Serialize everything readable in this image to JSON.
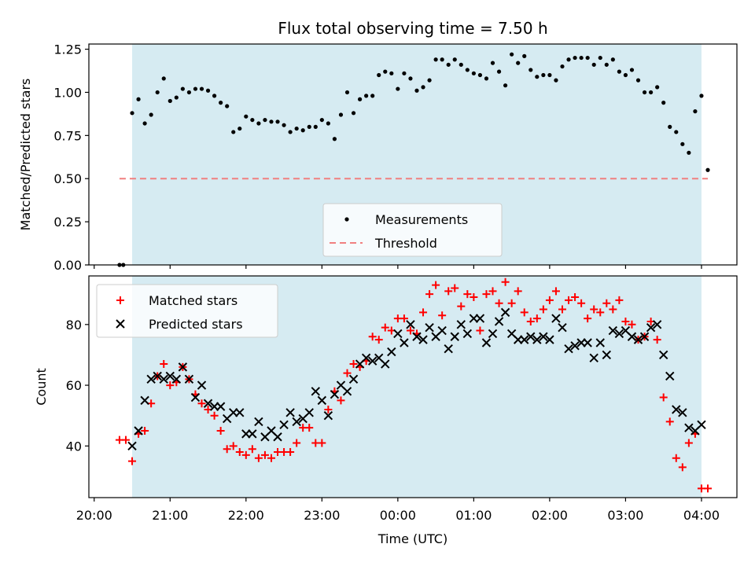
{
  "title": "Flux total observing time = 7.50 h",
  "chart_data": [
    {
      "type": "scatter",
      "panel": "top",
      "ylabel": "Matched/Predicted stars",
      "xlabel": "",
      "xlim": [
        "20:00",
        "04:30"
      ],
      "ylim": [
        0,
        1.28
      ],
      "yticks": [
        "0.00",
        "0.25",
        "0.50",
        "0.75",
        "1.00",
        "1.25"
      ],
      "shaded_interval": [
        "20:30",
        "04:00"
      ],
      "threshold": 0.5,
      "threshold_span": [
        "20:20",
        "04:05"
      ],
      "legend_position": "lower center",
      "legend": [
        {
          "label": "Measurements",
          "marker": "dot",
          "color": "#000000"
        },
        {
          "label": "Threshold",
          "marker": "dashed-line",
          "color": "#f08080"
        }
      ],
      "series": [
        {
          "name": "Measurements",
          "x": [
            "20:20",
            "20:23",
            "20:30",
            "20:35",
            "20:40",
            "20:45",
            "20:50",
            "20:55",
            "21:00",
            "21:05",
            "21:10",
            "21:15",
            "21:20",
            "21:25",
            "21:30",
            "21:35",
            "21:40",
            "21:45",
            "21:50",
            "21:55",
            "22:00",
            "22:05",
            "22:10",
            "22:15",
            "22:20",
            "22:25",
            "22:30",
            "22:35",
            "22:40",
            "22:45",
            "22:50",
            "22:55",
            "23:00",
            "23:05",
            "23:10",
            "23:15",
            "23:20",
            "23:25",
            "23:30",
            "23:35",
            "23:40",
            "23:45",
            "23:50",
            "23:55",
            "00:00",
            "00:05",
            "00:10",
            "00:15",
            "00:20",
            "00:25",
            "00:30",
            "00:35",
            "00:40",
            "00:45",
            "00:50",
            "00:55",
            "01:00",
            "01:05",
            "01:10",
            "01:15",
            "01:20",
            "01:25",
            "01:30",
            "01:35",
            "01:40",
            "01:45",
            "01:50",
            "01:55",
            "02:00",
            "02:05",
            "02:10",
            "02:15",
            "02:20",
            "02:25",
            "02:30",
            "02:35",
            "02:40",
            "02:45",
            "02:50",
            "02:55",
            "03:00",
            "03:05",
            "03:10",
            "03:15",
            "03:20",
            "03:25",
            "03:30",
            "03:35",
            "03:40",
            "03:45",
            "03:50",
            "03:55",
            "04:00",
            "04:05"
          ],
          "y": [
            0.0,
            0.0,
            0.88,
            0.96,
            0.82,
            0.87,
            1.0,
            1.08,
            0.95,
            0.97,
            1.02,
            1.0,
            1.02,
            1.02,
            1.01,
            0.98,
            0.94,
            0.92,
            0.77,
            0.79,
            0.86,
            0.84,
            0.82,
            0.84,
            0.83,
            0.83,
            0.81,
            0.77,
            0.79,
            0.78,
            0.8,
            0.8,
            0.84,
            0.82,
            0.73,
            0.87,
            1.0,
            0.88,
            0.96,
            0.98,
            0.98,
            1.1,
            1.12,
            1.11,
            1.02,
            1.11,
            1.08,
            1.01,
            1.03,
            1.07,
            1.19,
            1.19,
            1.16,
            1.19,
            1.16,
            1.13,
            1.11,
            1.1,
            1.08,
            1.17,
            1.12,
            1.04,
            1.22,
            1.17,
            1.21,
            1.13,
            1.09,
            1.1,
            1.1,
            1.07,
            1.15,
            1.19,
            1.2,
            1.2,
            1.2,
            1.16,
            1.2,
            1.16,
            1.19,
            1.12,
            1.1,
            1.13,
            1.07,
            1.0,
            1.0,
            1.03,
            0.94,
            0.8,
            0.77,
            0.7,
            0.65,
            0.89,
            0.98,
            0.55
          ]
        }
      ]
    },
    {
      "type": "scatter",
      "panel": "bottom",
      "ylabel": "Count",
      "xlabel": "Time (UTC)",
      "xlim": [
        "20:00",
        "04:30"
      ],
      "ylim": [
        23,
        96
      ],
      "yticks": [
        "40",
        "60",
        "80"
      ],
      "xticks": [
        "20:00",
        "21:00",
        "22:00",
        "23:00",
        "00:00",
        "01:00",
        "02:00",
        "03:00",
        "04:00"
      ],
      "shaded_interval": [
        "20:30",
        "04:00"
      ],
      "legend_position": "upper left",
      "legend": [
        {
          "label": "Matched stars",
          "marker": "plus",
          "color": "#ff0000"
        },
        {
          "label": "Predicted stars",
          "marker": "cross",
          "color": "#000000"
        }
      ],
      "series": [
        {
          "name": "Matched stars",
          "x": [
            "20:20",
            "20:25",
            "20:30",
            "20:35",
            "20:40",
            "20:45",
            "20:50",
            "20:55",
            "21:00",
            "21:05",
            "21:10",
            "21:15",
            "21:20",
            "21:25",
            "21:30",
            "21:35",
            "21:40",
            "21:45",
            "21:50",
            "21:55",
            "22:00",
            "22:05",
            "22:10",
            "22:15",
            "22:20",
            "22:25",
            "22:30",
            "22:35",
            "22:40",
            "22:45",
            "22:50",
            "22:55",
            "23:00",
            "23:05",
            "23:10",
            "23:15",
            "23:20",
            "23:25",
            "23:30",
            "23:35",
            "23:40",
            "23:45",
            "23:50",
            "23:55",
            "00:00",
            "00:05",
            "00:10",
            "00:15",
            "00:20",
            "00:25",
            "00:30",
            "00:35",
            "00:40",
            "00:45",
            "00:50",
            "00:55",
            "01:00",
            "01:05",
            "01:10",
            "01:15",
            "01:20",
            "01:25",
            "01:30",
            "01:35",
            "01:40",
            "01:45",
            "01:50",
            "01:55",
            "02:00",
            "02:05",
            "02:10",
            "02:15",
            "02:20",
            "02:25",
            "02:30",
            "02:35",
            "02:40",
            "02:45",
            "02:50",
            "02:55",
            "03:00",
            "03:05",
            "03:10",
            "03:15",
            "03:20",
            "03:25",
            "03:30",
            "03:35",
            "03:40",
            "03:45",
            "03:50",
            "03:55",
            "04:00",
            "04:05"
          ],
          "y": [
            42,
            42,
            35,
            44,
            45,
            54,
            63,
            67,
            60,
            61,
            66,
            62,
            57,
            54,
            52,
            50,
            45,
            39,
            40,
            38,
            37,
            39,
            36,
            37,
            36,
            38,
            38,
            38,
            41,
            46,
            46,
            41,
            41,
            52,
            58,
            55,
            64,
            67,
            66,
            68,
            76,
            75,
            79,
            78,
            82,
            82,
            78,
            77,
            84,
            90,
            93,
            83,
            91,
            92,
            86,
            90,
            89,
            78,
            90,
            91,
            87,
            94,
            87,
            91,
            84,
            81,
            82,
            85,
            88,
            91,
            85,
            88,
            89,
            87,
            82,
            85,
            84,
            87,
            85,
            88,
            81,
            80,
            75,
            76,
            81,
            75,
            56,
            48,
            36,
            33,
            41,
            44,
            26,
            26
          ]
        },
        {
          "name": "Predicted stars",
          "x": [
            "20:30",
            "20:35",
            "20:40",
            "20:45",
            "20:50",
            "20:55",
            "21:00",
            "21:05",
            "21:10",
            "21:15",
            "21:20",
            "21:25",
            "21:30",
            "21:35",
            "21:40",
            "21:45",
            "21:50",
            "21:55",
            "22:00",
            "22:05",
            "22:10",
            "22:15",
            "22:20",
            "22:25",
            "22:30",
            "22:35",
            "22:40",
            "22:45",
            "22:50",
            "22:55",
            "23:00",
            "23:05",
            "23:10",
            "23:15",
            "23:20",
            "23:25",
            "23:30",
            "23:35",
            "23:40",
            "23:45",
            "23:50",
            "23:55",
            "00:00",
            "00:05",
            "00:10",
            "00:15",
            "00:20",
            "00:25",
            "00:30",
            "00:35",
            "00:40",
            "00:45",
            "00:50",
            "00:55",
            "01:00",
            "01:05",
            "01:10",
            "01:15",
            "01:20",
            "01:25",
            "01:30",
            "01:35",
            "01:40",
            "01:45",
            "01:50",
            "01:55",
            "02:00",
            "02:05",
            "02:10",
            "02:15",
            "02:20",
            "02:25",
            "02:30",
            "02:35",
            "02:40",
            "02:45",
            "02:50",
            "02:55",
            "03:00",
            "03:05",
            "03:10",
            "03:15",
            "03:20",
            "03:25",
            "03:30",
            "03:35",
            "03:40",
            "03:45",
            "03:50",
            "03:55",
            "04:00"
          ],
          "y": [
            40,
            45,
            55,
            62,
            63,
            62,
            63,
            62,
            66,
            62,
            56,
            60,
            54,
            53,
            53,
            49,
            51,
            51,
            44,
            44,
            48,
            43,
            45,
            43,
            47,
            51,
            48,
            49,
            51,
            58,
            55,
            50,
            57,
            60,
            58,
            62,
            67,
            69,
            68,
            69,
            67,
            71,
            77,
            74,
            80,
            76,
            75,
            79,
            76,
            78,
            72,
            76,
            80,
            77,
            82,
            82,
            74,
            77,
            81,
            84,
            77,
            75,
            75,
            76,
            75,
            76,
            75,
            82,
            79,
            72,
            73,
            74,
            74,
            69,
            74,
            70,
            78,
            77,
            78,
            76,
            75,
            76,
            79,
            80,
            70,
            63,
            52,
            51,
            46,
            45,
            47
          ]
        }
      ]
    }
  ]
}
